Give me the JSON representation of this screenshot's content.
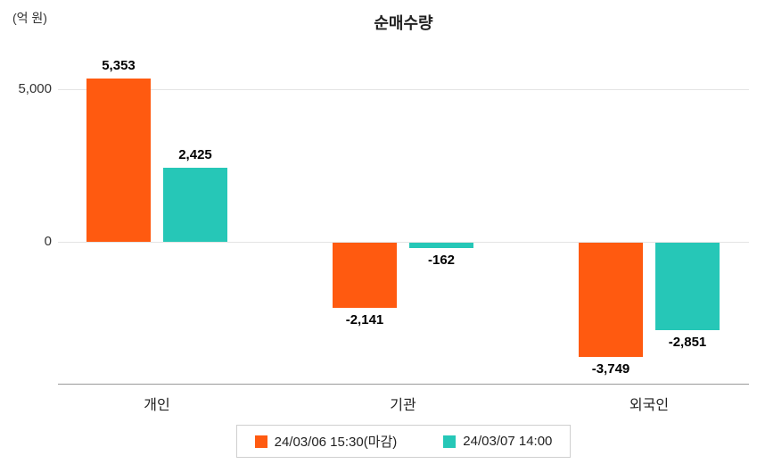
{
  "title": "순매수량",
  "chart_data": {
    "type": "bar",
    "title": "순매수량",
    "ylabel": "(억 원)",
    "categories": [
      "개인",
      "기관",
      "외국인"
    ],
    "series": [
      {
        "name": "24/03/06 15:30(마감)",
        "color": "#FF5A10",
        "values": [
          5353,
          -2141,
          -3749
        ],
        "labels": [
          "5,353",
          "-2,141",
          "-3,749"
        ]
      },
      {
        "name": "24/03/07 14:00",
        "color": "#26C7B7",
        "values": [
          2425,
          -162,
          -2851
        ],
        "labels": [
          "2,425",
          "-162",
          "-2,851"
        ]
      }
    ],
    "yticks": [
      {
        "value": 5000,
        "label": "5,000"
      },
      {
        "value": 0,
        "label": "0"
      }
    ],
    "ylim": [
      -4700,
      6200
    ],
    "grid": "horizontal",
    "legend_position": "bottom"
  }
}
